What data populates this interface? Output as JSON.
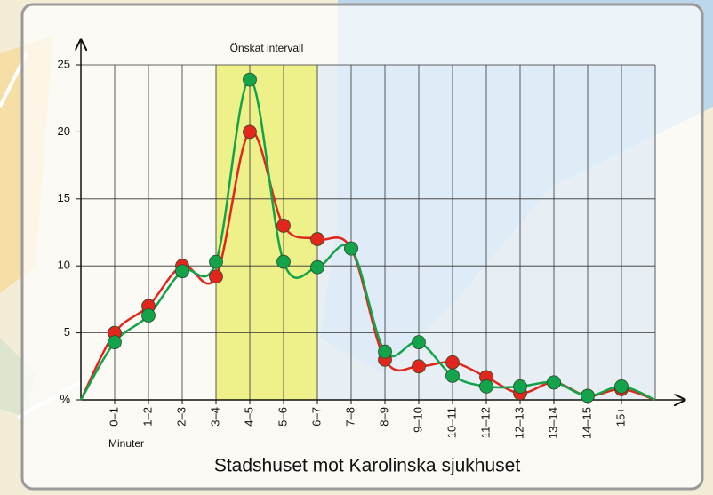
{
  "chart_data": {
    "type": "line",
    "title": "Stadshuset mot Karolinska sjukhuset",
    "x_label": "Minuter",
    "categories": [
      null,
      "0–1",
      "1–2",
      "2–3",
      "3–4",
      "4–5",
      "5–6",
      "6–7",
      "7–8",
      "8–9",
      "9–10",
      "10–11",
      "11–12",
      "12–13",
      "13–14",
      "14–15",
      "15+",
      null
    ],
    "series": [
      {
        "color": "#e2261c",
        "values": [
          0,
          5,
          7,
          10,
          9.2,
          20,
          13,
          12,
          11.3,
          3,
          2.5,
          2.8,
          1.7,
          0.5,
          1.3,
          0.3,
          0.8,
          0
        ]
      },
      {
        "color": "#13a34a",
        "values": [
          0,
          4.3,
          6.3,
          9.6,
          10.3,
          23.9,
          10.3,
          9.9,
          11.3,
          3.6,
          4.3,
          1.8,
          1.0,
          1.0,
          1.3,
          0.3,
          1.0,
          0
        ]
      }
    ],
    "highlight": {
      "label": "Önskat intervall",
      "from": "3–4",
      "to": "6–7",
      "color": "#eef08a"
    },
    "ylim": [
      0,
      25
    ],
    "yticks": [
      {
        "value": 0,
        "label": "%"
      },
      5,
      10,
      15,
      20,
      25
    ],
    "grid": true
  }
}
